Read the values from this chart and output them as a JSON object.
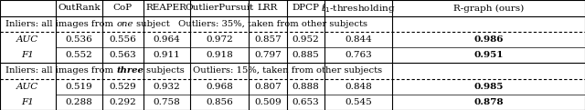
{
  "col_headers": [
    "",
    "OutRank",
    "CoP",
    "REAPER",
    "OutlierPursuit",
    "LRR",
    "DPCP",
    "ℓ_1-thresholding",
    "R-graph (ours)"
  ],
  "section1_label": "Inliers: all images from one subject   Outliers: 35%, taken from other subjects",
  "section2_label": "Inliers: all images from three subjects   Outliers: 15%, taken from other subjects",
  "rows": [
    [
      "AUC",
      "0.536",
      "0.556",
      "0.964",
      "0.972",
      "0.857",
      "0.952",
      "0.844",
      "0.986"
    ],
    [
      "F1",
      "0.552",
      "0.563",
      "0.911",
      "0.918",
      "0.797",
      "0.885",
      "0.763",
      "0.951"
    ],
    [
      "AUC",
      "0.519",
      "0.529",
      "0.932",
      "0.968",
      "0.807",
      "0.888",
      "0.848",
      "0.985"
    ],
    [
      "F1",
      "0.288",
      "0.292",
      "0.758",
      "0.856",
      "0.509",
      "0.653",
      "0.545",
      "0.878"
    ]
  ],
  "bold_last_col": true,
  "section1_italic_word": "one",
  "section2_italic_bold_word": "three",
  "bg_color": "#ffffff",
  "line_color": "#000000",
  "font_size": 7.5,
  "header_font_size": 7.5,
  "section_font_size": 7.2
}
